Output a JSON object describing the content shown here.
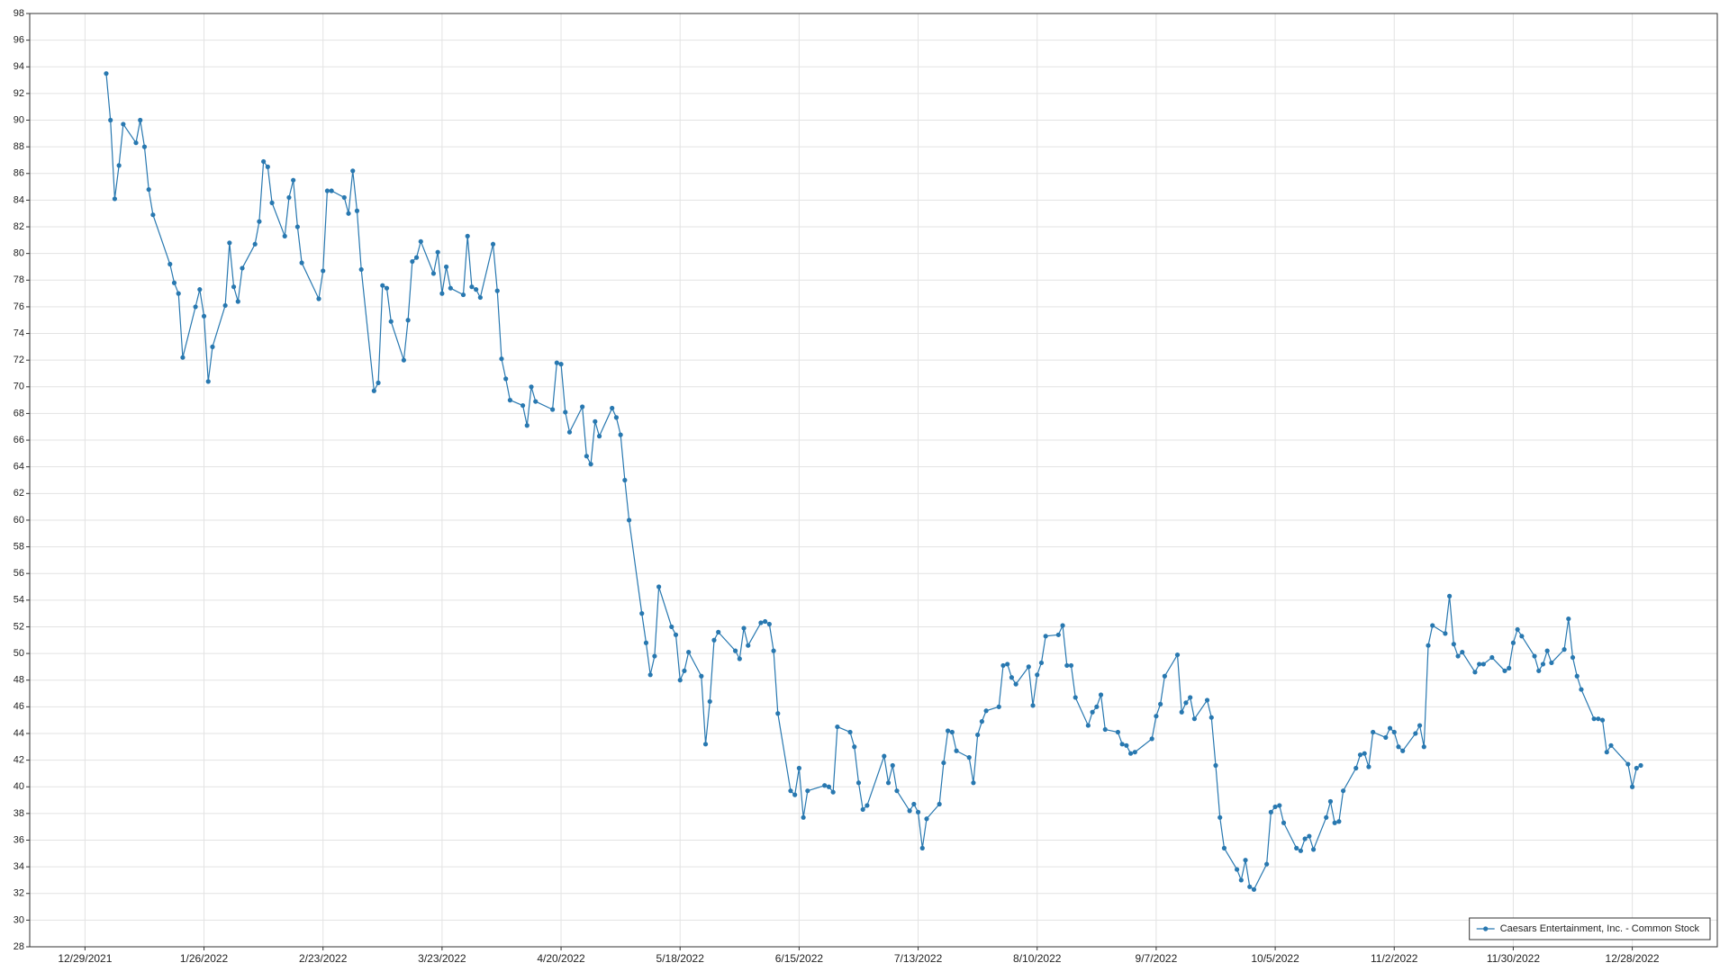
{
  "chart_data": {
    "type": "line",
    "x": [
      "1/3/2022",
      "1/4/2022",
      "1/5/2022",
      "1/6/2022",
      "1/7/2022",
      "1/10/2022",
      "1/11/2022",
      "1/12/2022",
      "1/13/2022",
      "1/14/2022",
      "1/18/2022",
      "1/19/2022",
      "1/20/2022",
      "1/21/2022",
      "1/24/2022",
      "1/25/2022",
      "1/26/2022",
      "1/27/2022",
      "1/28/2022",
      "1/31/2022",
      "2/1/2022",
      "2/2/2022",
      "2/3/2022",
      "2/4/2022",
      "2/7/2022",
      "2/8/2022",
      "2/9/2022",
      "2/10/2022",
      "2/11/2022",
      "2/14/2022",
      "2/15/2022",
      "2/16/2022",
      "2/17/2022",
      "2/18/2022",
      "2/22/2022",
      "2/23/2022",
      "2/24/2022",
      "2/25/2022",
      "2/28/2022",
      "3/1/2022",
      "3/2/2022",
      "3/3/2022",
      "3/4/2022",
      "3/7/2022",
      "3/8/2022",
      "3/9/2022",
      "3/10/2022",
      "3/11/2022",
      "3/14/2022",
      "3/15/2022",
      "3/16/2022",
      "3/17/2022",
      "3/18/2022",
      "3/21/2022",
      "3/22/2022",
      "3/23/2022",
      "3/24/2022",
      "3/25/2022",
      "3/28/2022",
      "3/29/2022",
      "3/30/2022",
      "3/31/2022",
      "4/1/2022",
      "4/4/2022",
      "4/5/2022",
      "4/6/2022",
      "4/7/2022",
      "4/8/2022",
      "4/11/2022",
      "4/12/2022",
      "4/13/2022",
      "4/14/2022",
      "4/18/2022",
      "4/19/2022",
      "4/20/2022",
      "4/21/2022",
      "4/22/2022",
      "4/25/2022",
      "4/26/2022",
      "4/27/2022",
      "4/28/2022",
      "4/29/2022",
      "5/2/2022",
      "5/3/2022",
      "5/4/2022",
      "5/5/2022",
      "5/6/2022",
      "5/9/2022",
      "5/10/2022",
      "5/11/2022",
      "5/12/2022",
      "5/13/2022",
      "5/16/2022",
      "5/17/2022",
      "5/18/2022",
      "5/19/2022",
      "5/20/2022",
      "5/23/2022",
      "5/24/2022",
      "5/25/2022",
      "5/26/2022",
      "5/27/2022",
      "5/31/2022",
      "6/1/2022",
      "6/2/2022",
      "6/3/2022",
      "6/6/2022",
      "6/7/2022",
      "6/8/2022",
      "6/9/2022",
      "6/10/2022",
      "6/13/2022",
      "6/14/2022",
      "6/15/2022",
      "6/16/2022",
      "6/17/2022",
      "6/21/2022",
      "6/22/2022",
      "6/23/2022",
      "6/24/2022",
      "6/27/2022",
      "6/28/2022",
      "6/29/2022",
      "6/30/2022",
      "7/1/2022",
      "7/5/2022",
      "7/6/2022",
      "7/7/2022",
      "7/8/2022",
      "7/11/2022",
      "7/12/2022",
      "7/13/2022",
      "7/14/2022",
      "7/15/2022",
      "7/18/2022",
      "7/19/2022",
      "7/20/2022",
      "7/21/2022",
      "7/22/2022",
      "7/25/2022",
      "7/26/2022",
      "7/27/2022",
      "7/28/2022",
      "7/29/2022",
      "8/1/2022",
      "8/2/2022",
      "8/3/2022",
      "8/4/2022",
      "8/5/2022",
      "8/8/2022",
      "8/9/2022",
      "8/10/2022",
      "8/11/2022",
      "8/12/2022",
      "8/15/2022",
      "8/16/2022",
      "8/17/2022",
      "8/18/2022",
      "8/19/2022",
      "8/22/2022",
      "8/23/2022",
      "8/24/2022",
      "8/25/2022",
      "8/26/2022",
      "8/29/2022",
      "8/30/2022",
      "8/31/2022",
      "9/1/2022",
      "9/2/2022",
      "9/6/2022",
      "9/7/2022",
      "9/8/2022",
      "9/9/2022",
      "9/12/2022",
      "9/13/2022",
      "9/14/2022",
      "9/15/2022",
      "9/16/2022",
      "9/19/2022",
      "9/20/2022",
      "9/21/2022",
      "9/22/2022",
      "9/23/2022",
      "9/26/2022",
      "9/27/2022",
      "9/28/2022",
      "9/29/2022",
      "9/30/2022",
      "10/3/2022",
      "10/4/2022",
      "10/5/2022",
      "10/6/2022",
      "10/7/2022",
      "10/10/2022",
      "10/11/2022",
      "10/12/2022",
      "10/13/2022",
      "10/14/2022",
      "10/17/2022",
      "10/18/2022",
      "10/19/2022",
      "10/20/2022",
      "10/21/2022",
      "10/24/2022",
      "10/25/2022",
      "10/26/2022",
      "10/27/2022",
      "10/28/2022",
      "10/31/2022",
      "11/1/2022",
      "11/2/2022",
      "11/3/2022",
      "11/4/2022",
      "11/7/2022",
      "11/8/2022",
      "11/9/2022",
      "11/10/2022",
      "11/11/2022",
      "11/14/2022",
      "11/15/2022",
      "11/16/2022",
      "11/17/2022",
      "11/18/2022",
      "11/21/2022",
      "11/22/2022",
      "11/23/2022",
      "11/25/2022",
      "11/28/2022",
      "11/29/2022",
      "11/30/2022",
      "12/1/2022",
      "12/2/2022",
      "12/5/2022",
      "12/6/2022",
      "12/7/2022",
      "12/8/2022",
      "12/9/2022",
      "12/12/2022",
      "12/13/2022",
      "12/14/2022",
      "12/15/2022",
      "12/16/2022",
      "12/19/2022",
      "12/20/2022",
      "12/21/2022",
      "12/22/2022",
      "12/23/2022",
      "12/27/2022",
      "12/28/2022",
      "12/29/2022",
      "12/30/2022"
    ],
    "series": [
      {
        "name": "Caesars Entertainment, Inc. - Common Stock",
        "color": "#2878b0",
        "values": [
          93.5,
          90,
          84.1,
          86.6,
          89.7,
          88.3,
          90,
          88,
          84.8,
          82.9,
          79.2,
          77.8,
          77,
          72.2,
          76,
          77.3,
          75.3,
          70.4,
          73,
          76.1,
          80.8,
          77.5,
          76.4,
          78.9,
          80.7,
          82.4,
          86.9,
          86.5,
          83.8,
          81.3,
          84.2,
          85.5,
          82,
          79.3,
          76.6,
          78.7,
          84.7,
          84.7,
          84.2,
          83,
          86.2,
          83.2,
          78.8,
          69.7,
          70.3,
          77.6,
          77.4,
          74.9,
          72,
          75,
          79.4,
          79.7,
          80.9,
          78.5,
          80.1,
          77,
          79,
          77.4,
          76.9,
          81.3,
          77.5,
          77.3,
          76.7,
          80.7,
          77.2,
          72.1,
          70.6,
          69,
          68.6,
          67.1,
          70,
          68.9,
          68.3,
          71.8,
          71.7,
          68.1,
          66.6,
          68.5,
          64.8,
          64.2,
          67.4,
          66.3,
          68.4,
          67.7,
          66.4,
          63,
          60,
          53,
          50.8,
          48.4,
          49.8,
          55,
          52,
          51.4,
          48,
          48.7,
          50.1,
          48.3,
          43.2,
          46.4,
          51,
          51.6,
          50.2,
          49.6,
          51.9,
          50.6,
          52.3,
          52.4,
          52.2,
          50.2,
          45.5,
          39.7,
          39.4,
          41.4,
          37.7,
          39.7,
          40.1,
          40,
          39.6,
          44.5,
          44.1,
          43,
          40.3,
          38.3,
          38.6,
          42.3,
          40.3,
          41.6,
          39.7,
          38.2,
          38.7,
          38.1,
          35.4,
          37.6,
          38.7,
          41.8,
          44.2,
          44.1,
          42.7,
          42.2,
          40.3,
          43.9,
          44.9,
          45.7,
          46,
          49.1,
          49.2,
          48.2,
          47.7,
          49,
          46.1,
          48.4,
          49.3,
          51.3,
          51.4,
          52.1,
          49.1,
          49.1,
          46.7,
          44.6,
          45.6,
          46,
          46.9,
          44.3,
          44.1,
          43.2,
          43.1,
          42.5,
          42.6,
          43.6,
          45.3,
          46.2,
          48.3,
          49.9,
          45.6,
          46.3,
          46.7,
          45.1,
          46.5,
          45.2,
          41.6,
          37.7,
          35.4,
          33.8,
          33,
          34.5,
          32.5,
          32.3,
          34.2,
          38.1,
          38.5,
          38.6,
          37.3,
          35.4,
          35.2,
          36.1,
          36.3,
          35.3,
          37.7,
          38.9,
          37.3,
          37.4,
          39.7,
          41.4,
          42.4,
          42.5,
          41.5,
          44.1,
          43.7,
          44.4,
          44.1,
          43,
          42.7,
          44,
          44.6,
          43,
          50.6,
          52.1,
          51.5,
          54.3,
          50.7,
          49.8,
          50.1,
          48.6,
          49.2,
          49.2,
          49.7,
          48.7,
          48.9,
          50.8,
          51.8,
          51.3,
          49.8,
          48.7,
          49.2,
          50.2,
          49.3,
          50.3,
          52.6,
          49.7,
          48.3,
          47.3,
          45.1,
          45.1,
          45,
          42.6,
          43.1,
          41.7,
          40,
          41.4,
          41.6
        ]
      }
    ],
    "xlim": [
      "12/16/2021",
      "1/17/2023"
    ],
    "xticks": [
      "12/29/2021",
      "1/26/2022",
      "2/23/2022",
      "3/23/2022",
      "4/20/2022",
      "5/18/2022",
      "6/15/2022",
      "7/13/2022",
      "8/10/2022",
      "9/7/2022",
      "10/5/2022",
      "11/2/2022",
      "11/30/2022",
      "12/28/2022"
    ],
    "ylim": [
      28,
      98
    ],
    "yticks": [
      28,
      30,
      32,
      34,
      36,
      38,
      40,
      42,
      44,
      46,
      48,
      50,
      52,
      54,
      56,
      58,
      60,
      62,
      64,
      66,
      68,
      70,
      72,
      74,
      76,
      78,
      80,
      82,
      84,
      86,
      88,
      90,
      92,
      94,
      96,
      98
    ],
    "grid": true,
    "legend": "lower right"
  }
}
